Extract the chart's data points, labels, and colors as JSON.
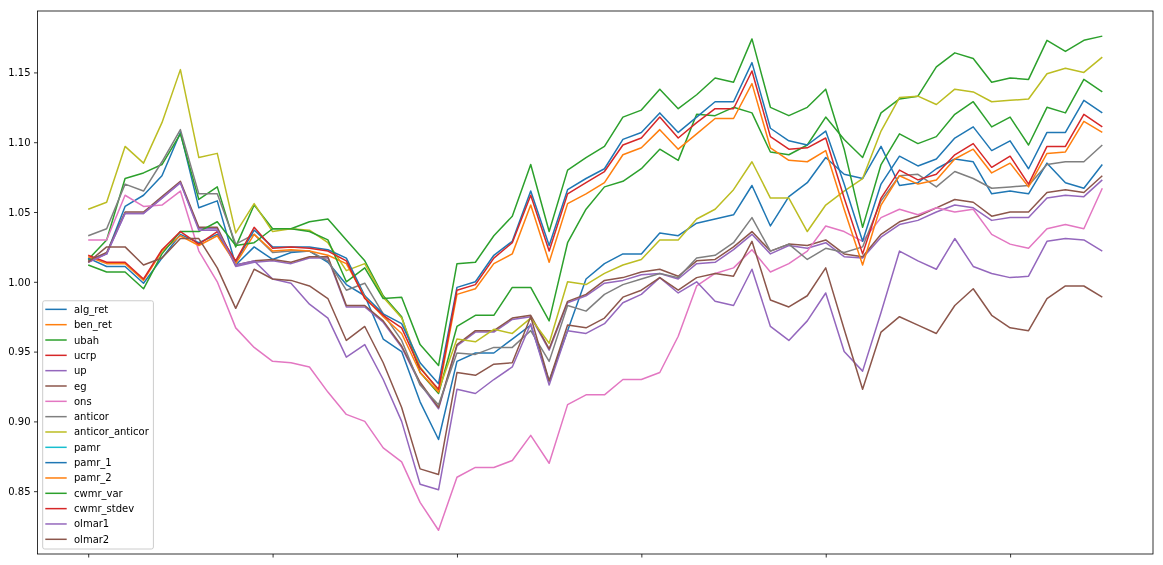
{
  "chart_data": {
    "type": "line",
    "legend": "bottom left",
    "tick_labels": "y",
    "categories": [
      null,
      null,
      null,
      null,
      null,
      null,
      null,
      null,
      null,
      null,
      null,
      null,
      null,
      null,
      null,
      null,
      null,
      null,
      null,
      null,
      null,
      null,
      null,
      null,
      null,
      null,
      null,
      null,
      null,
      null,
      null,
      null,
      null,
      null,
      null,
      null,
      null,
      null,
      null,
      null,
      null,
      null,
      null,
      null,
      null,
      null,
      null,
      null,
      null,
      null,
      null,
      null,
      null,
      null,
      null,
      null
    ],
    "ylim": [
      0.805,
      1.194
    ],
    "yticks": [
      0.85,
      {
        "value": 0.9,
        "label": "0.90"
      },
      0.95,
      {
        "value": 1.0,
        "label": "1.00"
      },
      1.05,
      {
        "value": 1.1,
        "label": "1.10"
      },
      1.15
    ],
    "series": [
      {
        "name": "alg_ret",
        "color": "#1f77b4",
        "values": [
          1.016,
          1.02,
          1.054,
          1.062,
          1.076,
          1.107,
          1.053,
          1.058,
          1.012,
          1.025,
          1.016,
          1.021,
          1.022,
          1.014,
          0.998,
          0.99,
          0.959,
          0.95,
          0.914,
          0.887,
          0.943,
          0.949,
          0.949,
          0.959,
          0.969,
          0.929,
          0.965,
          1.002,
          1.013,
          1.02,
          1.02,
          1.035,
          1.033,
          1.042,
          1.045,
          1.048,
          1.069,
          1.04,
          1.061,
          1.071,
          1.089,
          1.077,
          1.074,
          1.097,
          1.069,
          1.071,
          1.081,
          1.088,
          1.086,
          1.063,
          1.065,
          1.063,
          1.085,
          1.071,
          1.067,
          1.084
        ]
      },
      {
        "name": "ben_ret",
        "color": "#ff7f0e",
        "values": [
          null,
          null,
          null,
          null,
          null,
          null,
          null,
          null,
          null,
          null,
          null,
          null,
          null,
          null,
          null,
          null,
          null,
          null,
          null,
          null,
          null,
          null,
          null,
          null,
          null,
          null,
          null,
          null,
          null,
          null,
          null,
          null,
          null,
          null,
          null,
          null,
          null,
          null,
          null,
          null,
          null,
          null,
          null,
          null,
          null,
          null,
          null,
          null,
          null,
          null,
          null,
          null,
          null,
          null,
          null,
          null
        ]
      },
      {
        "name": "ubah",
        "color": "#2ca02c",
        "values": [
          1.016,
          1.03,
          1.074,
          1.078,
          1.084,
          1.106,
          1.059,
          1.068,
          1.025,
          1.055,
          1.038,
          1.038,
          1.043,
          1.045,
          1.03,
          1.015,
          0.99,
          0.975,
          0.935,
          0.92,
          0.968,
          0.976,
          0.976,
          0.996,
          0.996,
          0.972,
          1.028,
          1.052,
          1.068,
          1.072,
          1.081,
          1.095,
          1.087,
          1.12,
          1.119,
          1.125,
          1.121,
          1.093,
          1.091,
          1.098,
          1.118,
          1.102,
          1.089,
          1.121,
          1.131,
          1.133,
          1.154,
          1.164,
          1.16,
          1.143,
          1.146,
          1.145,
          1.173,
          1.165,
          1.173,
          1.176
        ]
      },
      {
        "name": "ucrp",
        "color": "#d62728",
        "values": [
          null,
          null,
          null,
          null,
          null,
          null,
          null,
          null,
          null,
          null,
          null,
          null,
          null,
          null,
          null,
          null,
          null,
          null,
          null,
          null,
          null,
          null,
          null,
          null,
          null,
          null,
          null,
          null,
          null,
          null,
          null,
          null,
          null,
          null,
          null,
          null,
          null,
          null,
          null,
          null,
          null,
          null,
          null,
          null,
          null,
          null,
          null,
          null,
          null,
          null,
          null,
          null,
          null,
          null,
          null,
          null
        ]
      },
      {
        "name": "up",
        "color": "#9467bd",
        "values": [
          1.014,
          1.02,
          1.049,
          1.049,
          1.06,
          1.071,
          1.038,
          1.038,
          1.011,
          1.014,
          1.015,
          1.013,
          1.017,
          1.017,
          0.982,
          0.982,
          0.971,
          0.953,
          0.927,
          0.909,
          0.954,
          0.964,
          0.964,
          0.973,
          0.975,
          0.951,
          0.985,
          0.99,
          0.999,
          1.001,
          1.005,
          1.006,
          1.002,
          1.013,
          1.014,
          1.023,
          1.034,
          1.02,
          1.026,
          1.024,
          1.028,
          1.018,
          1.017,
          1.032,
          1.041,
          1.044,
          1.05,
          1.055,
          1.053,
          1.044,
          1.046,
          1.046,
          1.06,
          1.062,
          1.061,
          1.073
        ]
      },
      {
        "name": "eg",
        "color": "#8c564b",
        "values": [
          1.015,
          1.021,
          1.05,
          1.05,
          1.061,
          1.072,
          1.039,
          1.039,
          1.012,
          1.015,
          1.016,
          1.014,
          1.018,
          1.018,
          0.983,
          0.983,
          0.972,
          0.954,
          0.928,
          0.91,
          0.955,
          0.965,
          0.965,
          0.974,
          0.976,
          0.952,
          0.986,
          0.991,
          1.001,
          1.003,
          1.007,
          1.009,
          1.004,
          1.015,
          1.016,
          1.025,
          1.036,
          1.022,
          1.027,
          1.026,
          1.03,
          1.02,
          1.018,
          1.034,
          1.043,
          1.047,
          1.053,
          1.059,
          1.057,
          1.047,
          1.05,
          1.05,
          1.064,
          1.066,
          1.064,
          1.076
        ]
      },
      {
        "name": "ons",
        "color": "#e377c2",
        "values": [
          1.03,
          1.03,
          1.062,
          1.054,
          1.055,
          1.065,
          1.022,
          1.0,
          0.967,
          0.953,
          0.943,
          0.942,
          0.939,
          0.921,
          0.905,
          0.9,
          0.881,
          0.871,
          0.842,
          0.822,
          0.86,
          0.867,
          0.867,
          0.872,
          0.89,
          0.87,
          0.912,
          0.919,
          0.919,
          0.93,
          0.93,
          0.935,
          0.961,
          0.997,
          1.006,
          1.01,
          1.023,
          1.007,
          1.013,
          1.022,
          1.04,
          1.036,
          1.029,
          1.046,
          1.052,
          1.048,
          1.053,
          1.05,
          1.052,
          1.034,
          1.027,
          1.024,
          1.038,
          1.041,
          1.038,
          1.067
        ]
      },
      {
        "name": "anticor",
        "color": "#7f7f7f",
        "values": [
          1.033,
          1.038,
          1.07,
          1.065,
          1.086,
          1.109,
          1.063,
          1.063,
          1.027,
          1.034,
          1.021,
          1.022,
          1.022,
          1.015,
          0.994,
          0.999,
          0.977,
          0.958,
          0.926,
          0.912,
          0.949,
          0.948,
          0.953,
          0.953,
          0.965,
          0.943,
          0.983,
          0.979,
          0.991,
          0.998,
          1.002,
          1.006,
          1.003,
          1.017,
          1.019,
          1.028,
          1.046,
          1.022,
          1.027,
          1.016,
          1.024,
          1.021,
          1.025,
          1.058,
          1.076,
          1.077,
          1.068,
          1.079,
          1.074,
          1.067,
          1.068,
          1.069,
          1.084,
          1.086,
          1.086,
          1.098
        ]
      },
      {
        "name": "anticor_anticor",
        "color": "#bcbd22",
        "values": [
          1.052,
          1.057,
          1.097,
          1.085,
          1.114,
          1.152,
          1.089,
          1.092,
          1.035,
          1.056,
          1.036,
          1.038,
          1.037,
          1.028,
          1.008,
          1.013,
          0.989,
          0.974,
          0.939,
          0.922,
          0.959,
          0.957,
          0.966,
          0.963,
          0.974,
          0.956,
          1.0,
          0.998,
          1.006,
          1.012,
          1.016,
          1.03,
          1.03,
          1.045,
          1.052,
          1.066,
          1.086,
          1.06,
          1.06,
          1.036,
          1.055,
          1.065,
          1.074,
          1.108,
          1.132,
          1.133,
          1.127,
          1.138,
          1.136,
          1.129,
          1.13,
          1.131,
          1.149,
          1.153,
          1.15,
          1.161
        ]
      },
      {
        "name": "pamr",
        "color": "#17becf",
        "values": [
          null,
          null,
          null,
          null,
          null,
          null,
          null,
          null,
          null,
          null,
          null,
          null,
          null,
          null,
          null,
          null,
          null,
          null,
          null,
          null,
          null,
          null,
          null,
          null,
          null,
          null,
          null,
          null,
          null,
          null,
          null,
          null,
          null,
          null,
          null,
          null,
          null,
          null,
          null,
          null,
          null,
          null,
          null,
          null,
          null,
          null,
          null,
          null,
          null,
          null,
          null,
          null,
          null,
          null,
          null,
          null
        ]
      },
      {
        "name": "pamr_1",
        "color": "#1f77b4",
        "values": [
          1.017,
          1.011,
          1.011,
          0.999,
          1.017,
          1.034,
          1.028,
          1.034,
          1.014,
          1.037,
          1.025,
          1.025,
          1.025,
          1.023,
          1.017,
          0.99,
          0.977,
          0.97,
          0.942,
          0.927,
          0.996,
          1.0,
          1.019,
          1.029,
          1.065,
          1.026,
          1.066,
          1.074,
          1.081,
          1.102,
          1.107,
          1.121,
          1.107,
          1.118,
          1.129,
          1.129,
          1.157,
          1.11,
          1.101,
          1.098,
          1.108,
          1.07,
          1.029,
          1.07,
          1.09,
          1.083,
          1.088,
          1.103,
          1.111,
          1.094,
          1.101,
          1.081,
          1.107,
          1.107,
          1.13,
          1.121
        ]
      },
      {
        "name": "pamr_2",
        "color": "#ff7f0e",
        "values": [
          1.018,
          1.013,
          1.013,
          1.001,
          1.022,
          1.033,
          1.026,
          1.033,
          1.013,
          1.034,
          1.022,
          1.023,
          1.022,
          1.019,
          1.013,
          0.989,
          0.975,
          0.963,
          0.935,
          0.921,
          0.991,
          0.995,
          1.013,
          1.02,
          1.055,
          1.014,
          1.056,
          1.063,
          1.071,
          1.091,
          1.096,
          1.109,
          1.095,
          1.106,
          1.117,
          1.117,
          1.142,
          1.096,
          1.087,
          1.086,
          1.094,
          1.052,
          1.012,
          1.055,
          1.076,
          1.07,
          1.073,
          1.088,
          1.095,
          1.078,
          1.085,
          1.068,
          1.092,
          1.093,
          1.115,
          1.107
        ]
      },
      {
        "name": "cwmr_var",
        "color": "#2ca02c",
        "values": [
          1.012,
          1.007,
          1.007,
          0.995,
          1.02,
          1.036,
          1.036,
          1.043,
          1.026,
          1.028,
          1.038,
          1.038,
          1.036,
          1.03,
          1.0,
          1.01,
          0.988,
          0.989,
          0.955,
          0.94,
          1.013,
          1.014,
          1.033,
          1.047,
          1.084,
          1.036,
          1.08,
          1.089,
          1.097,
          1.118,
          1.123,
          1.138,
          1.124,
          1.134,
          1.146,
          1.143,
          1.174,
          1.125,
          1.119,
          1.125,
          1.138,
          1.095,
          1.039,
          1.084,
          1.106,
          1.099,
          1.104,
          1.12,
          1.129,
          1.111,
          1.118,
          1.098,
          1.125,
          1.121,
          1.145,
          1.136
        ]
      },
      {
        "name": "cwmr_stdev",
        "color": "#d62728",
        "values": [
          1.019,
          1.014,
          1.014,
          1.002,
          1.023,
          1.036,
          1.027,
          1.036,
          1.015,
          1.039,
          1.024,
          1.025,
          1.024,
          1.022,
          1.015,
          0.988,
          0.976,
          0.967,
          0.938,
          0.923,
          0.994,
          0.998,
          1.017,
          1.028,
          1.062,
          1.022,
          1.063,
          1.071,
          1.079,
          1.098,
          1.103,
          1.118,
          1.103,
          1.114,
          1.124,
          1.124,
          1.151,
          1.104,
          1.095,
          1.096,
          1.103,
          1.06,
          1.02,
          1.06,
          1.08,
          1.073,
          1.077,
          1.091,
          1.099,
          1.082,
          1.09,
          1.07,
          1.097,
          1.097,
          1.12,
          1.111
        ]
      },
      {
        "name": "olmar1",
        "color": "#9467bd",
        "values": [
          1.014,
          1.02,
          1.049,
          1.049,
          1.06,
          1.071,
          1.037,
          1.037,
          1.012,
          1.015,
          1.002,
          0.999,
          0.984,
          0.974,
          0.946,
          0.955,
          0.93,
          0.9,
          0.855,
          0.851,
          0.923,
          0.92,
          0.93,
          0.939,
          0.97,
          0.926,
          0.965,
          0.963,
          0.97,
          0.985,
          0.991,
          1.003,
          0.992,
          1.0,
          0.986,
          0.983,
          1.009,
          0.968,
          0.958,
          0.972,
          0.992,
          0.95,
          0.936,
          0.978,
          1.022,
          1.015,
          1.009,
          1.031,
          1.011,
          1.006,
          1.003,
          1.004,
          1.029,
          1.031,
          1.03,
          1.022
        ]
      },
      {
        "name": "olmar2",
        "color": "#8c564b",
        "values": [
          1.014,
          1.025,
          1.025,
          1.012,
          1.017,
          1.031,
          1.031,
          1.01,
          0.981,
          1.009,
          1.002,
          1.001,
          0.997,
          0.988,
          0.958,
          0.968,
          0.942,
          0.91,
          0.866,
          0.862,
          0.935,
          0.933,
          0.941,
          0.942,
          0.975,
          0.929,
          0.969,
          0.967,
          0.974,
          0.989,
          0.994,
          1.003,
          0.994,
          1.003,
          1.006,
          1.004,
          1.029,
          0.987,
          0.982,
          0.99,
          1.01,
          0.966,
          0.923,
          0.964,
          0.975,
          0.969,
          0.963,
          0.983,
          0.995,
          0.976,
          0.967,
          0.965,
          0.988,
          0.997,
          0.997,
          0.989
        ]
      }
    ]
  }
}
